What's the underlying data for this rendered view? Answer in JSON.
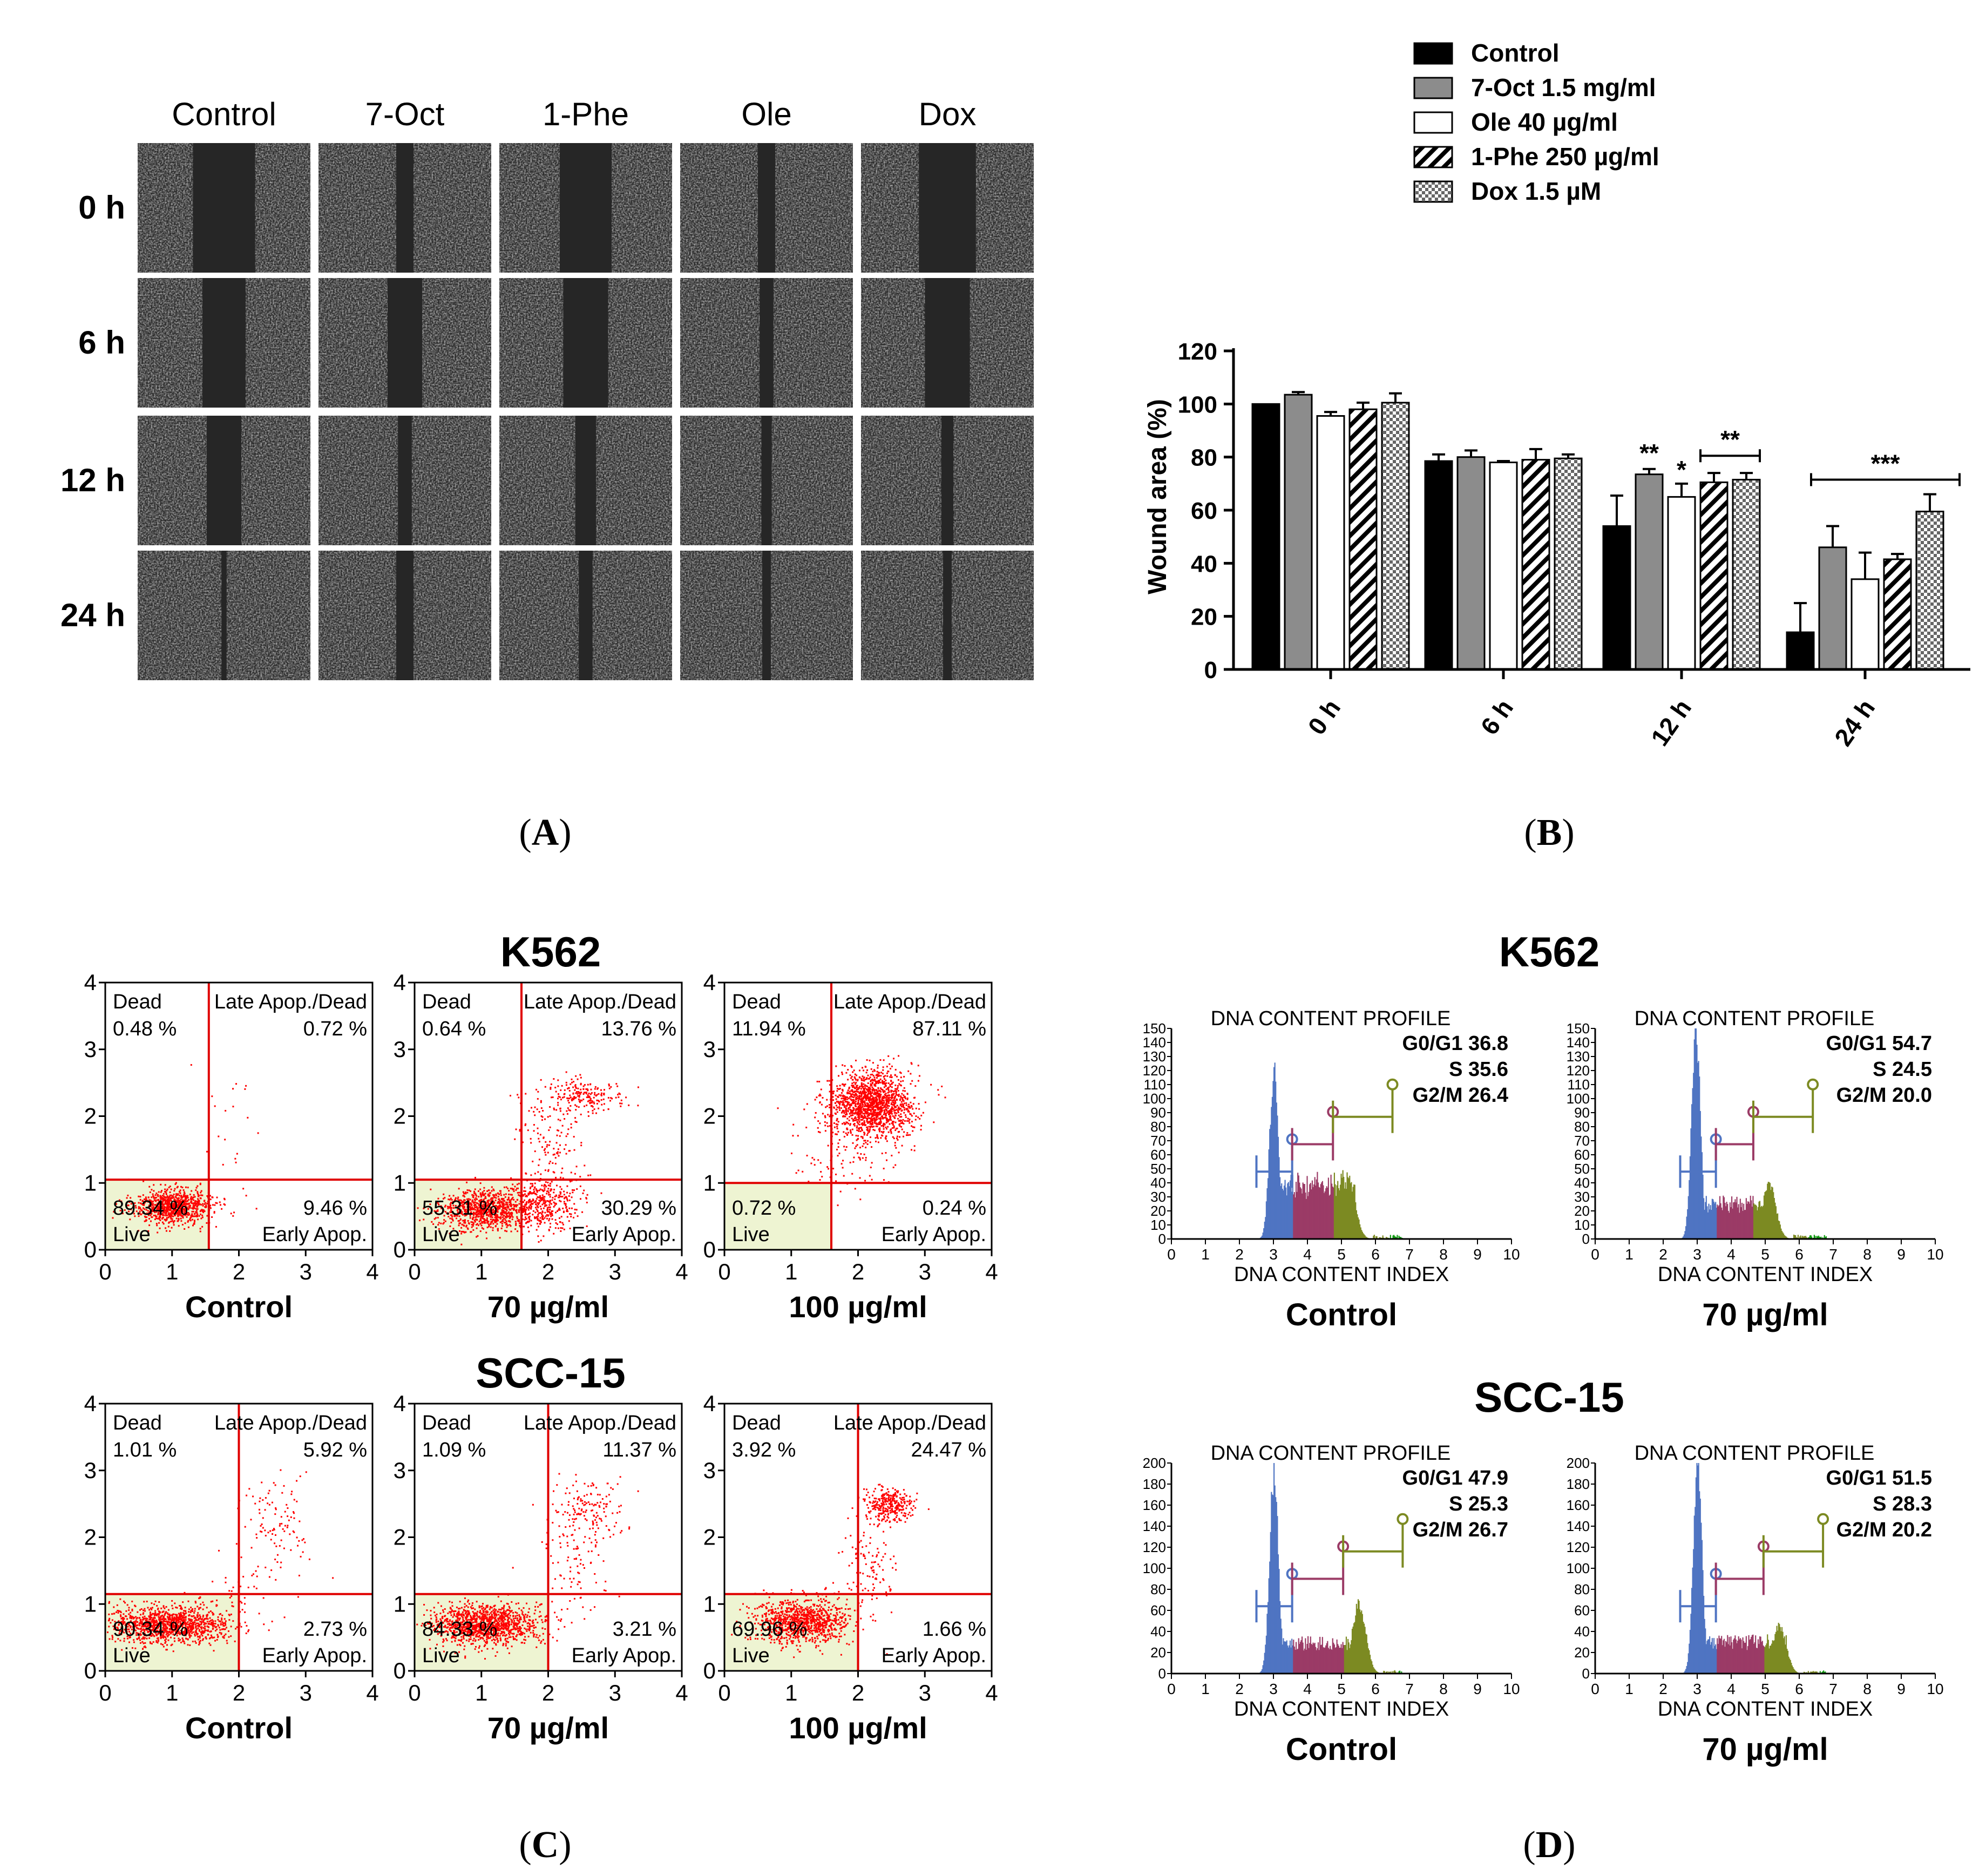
{
  "panels": {
    "A": "A",
    "B": "B",
    "C": "C",
    "D": "D"
  },
  "panel_a": {
    "columns": [
      "Control",
      "7-Oct",
      "1-Phe",
      "Ole",
      "Dox"
    ],
    "rows": [
      "0 h",
      "6 h",
      "12 h",
      "24 h"
    ],
    "gap_fraction": [
      [
        0.36,
        0.1,
        0.3,
        0.1,
        0.33
      ],
      [
        0.25,
        0.2,
        0.26,
        0.08,
        0.26
      ],
      [
        0.2,
        0.08,
        0.12,
        0.06,
        0.07
      ],
      [
        0.03,
        0.1,
        0.08,
        0.05,
        0.05
      ]
    ]
  },
  "chart_data": [
    {
      "type": "bar",
      "title": "",
      "xlabel": "",
      "ylabel": "Wound area (%)",
      "ylim": [
        0,
        120
      ],
      "yticks": [
        "0",
        "20",
        "40",
        "60",
        "80",
        "100",
        "120"
      ],
      "categories": [
        "0 h",
        "6 h",
        "12 h",
        "24 h"
      ],
      "series": [
        {
          "name": "Control",
          "values": [
            100,
            78.5,
            54,
            14
          ],
          "errors": [
            0,
            2.5,
            11.5,
            11
          ],
          "fill": "#000000"
        },
        {
          "name": "7-Oct 1.5 mg/ml",
          "values": [
            103.5,
            80,
            73.5,
            46
          ],
          "errors": [
            1,
            2.5,
            2,
            8
          ],
          "fill": "#8c8c8c"
        },
        {
          "name": "Ole 40 µg/ml",
          "values": [
            95.5,
            78,
            65,
            34
          ],
          "errors": [
            1.5,
            0.5,
            5,
            10
          ],
          "fill": "#ffffff"
        },
        {
          "name": "1-Phe 250 µg/ml",
          "values": [
            98,
            79,
            70.5,
            41.5
          ],
          "errors": [
            2.5,
            4,
            3.5,
            2
          ],
          "fill": "hatch"
        },
        {
          "name": "Dox 1.5 µM",
          "values": [
            100.5,
            79.5,
            71.5,
            59.5
          ],
          "errors": [
            3.5,
            1.5,
            2.5,
            6.5
          ],
          "fill": "checker"
        }
      ],
      "annotations": [
        "**",
        "*",
        "**",
        "***"
      ]
    },
    {
      "type": "scatter",
      "cell_line": "K562",
      "panels": [
        {
          "label": "Control",
          "q_dead": "0.48 %",
          "q_late": "0.72 %",
          "q_live": "89.34 %",
          "q_early": "9.46 %",
          "vline": 1.55,
          "hline": 1.05
        },
        {
          "label": "70 µg/ml",
          "q_dead": "0.64 %",
          "q_late": "13.76 %",
          "q_live": "55.31 %",
          "q_early": "30.29 %",
          "vline": 1.6,
          "hline": 1.05
        },
        {
          "label": "100 µg/ml",
          "q_dead": "11.94 %",
          "q_late": "87.11 %",
          "q_live": "0.72 %",
          "q_early": "0.24 %",
          "vline": 1.6,
          "hline": 1.0
        }
      ],
      "xlim": [
        0,
        4
      ],
      "ylim": [
        0,
        4
      ],
      "xticks": [
        "0",
        "1",
        "2",
        "3",
        "4"
      ],
      "yticks": [
        "0",
        "1",
        "2",
        "3",
        "4"
      ]
    },
    {
      "type": "scatter",
      "cell_line": "SCC-15",
      "panels": [
        {
          "label": "Control",
          "q_dead": "1.01 %",
          "q_late": "5.92 %",
          "q_live": "90.34 %",
          "q_early": "2.73 %",
          "vline": 2.0,
          "hline": 1.15
        },
        {
          "label": "70 µg/ml",
          "q_dead": "1.09 %",
          "q_late": "11.37 %",
          "q_live": "84.33 %",
          "q_early": "3.21 %",
          "vline": 2.0,
          "hline": 1.15
        },
        {
          "label": "100 µg/ml",
          "q_dead": "3.92 %",
          "q_late": "24.47 %",
          "q_live": "69.96 %",
          "q_early": "1.66 %",
          "vline": 2.0,
          "hline": 1.15
        }
      ],
      "xlim": [
        0,
        4
      ],
      "ylim": [
        0,
        4
      ],
      "xticks": [
        "0",
        "1",
        "2",
        "3",
        "4"
      ],
      "yticks": [
        "0",
        "1",
        "2",
        "3",
        "4"
      ]
    },
    {
      "type": "histogram",
      "cell_line": "K562",
      "panels": [
        {
          "label": "Control",
          "title": "DNA CONTENT PROFILE",
          "xlabel": "DNA CONTENT INDEX",
          "g0g1": "G0/G1 36.8",
          "s": "S 35.6",
          "g2m": "G2/M 26.4",
          "g1_peak": 3.0,
          "g1_height": 118,
          "s_level": 38,
          "g2_peak": 5.2,
          "g2_height": 42
        },
        {
          "label": "70 µg/ml",
          "title": "DNA CONTENT PROFILE",
          "xlabel": "DNA CONTENT INDEX",
          "g0g1": "G0/G1 54.7",
          "s": "S 24.5",
          "g2m": "G2/M 20.0",
          "g1_peak": 2.95,
          "g1_height": 150,
          "s_level": 25,
          "g2_peak": 5.1,
          "g2_height": 38
        }
      ],
      "xlim": [
        0,
        10
      ],
      "ylim": [
        0,
        150
      ],
      "xticks": [
        "0",
        "1",
        "2",
        "3",
        "4",
        "5",
        "6",
        "7",
        "8",
        "9",
        "10"
      ],
      "yticks": [
        "0",
        "10",
        "20",
        "30",
        "40",
        "50",
        "60",
        "70",
        "80",
        "90",
        "100",
        "110",
        "120",
        "130",
        "140",
        "150"
      ]
    },
    {
      "type": "histogram",
      "cell_line": "SCC-15",
      "panels": [
        {
          "label": "Control",
          "title": "DNA CONTENT PROFILE",
          "xlabel": "DNA CONTENT INDEX",
          "g0g1": "G0/G1 47.9",
          "s": "S 25.3",
          "g2m": "G2/M 26.7",
          "g1_peak": 3.0,
          "g1_height": 190,
          "s_level": 28,
          "g2_peak": 5.5,
          "g2_height": 65
        },
        {
          "label": "70 µg/ml",
          "title": "DNA CONTENT PROFILE",
          "xlabel": "DNA CONTENT INDEX",
          "g0g1": "G0/G1 51.5",
          "s": "S 28.3",
          "g2m": "G2/M 20.2",
          "g1_peak": 3.0,
          "g1_height": 195,
          "s_level": 30,
          "g2_peak": 5.4,
          "g2_height": 45
        }
      ],
      "xlim": [
        0,
        10
      ],
      "ylim": [
        0,
        200
      ],
      "xticks": [
        "0",
        "1",
        "2",
        "3",
        "4",
        "5",
        "6",
        "7",
        "8",
        "9",
        "10"
      ],
      "yticks": [
        "0",
        "20",
        "40",
        "60",
        "80",
        "100",
        "120",
        "140",
        "160",
        "180",
        "200"
      ]
    }
  ],
  "flow_labels": {
    "dead": "Dead",
    "late": "Late Apop./Dead",
    "live": "Live",
    "early": "Early Apop."
  },
  "colors": {
    "dot": "#ff0000",
    "live_quadrant": "#eef4d2",
    "g1": "#4f74c2",
    "s": "#9b3b66",
    "g2": "#7c8a22",
    "sub": "#119911"
  }
}
